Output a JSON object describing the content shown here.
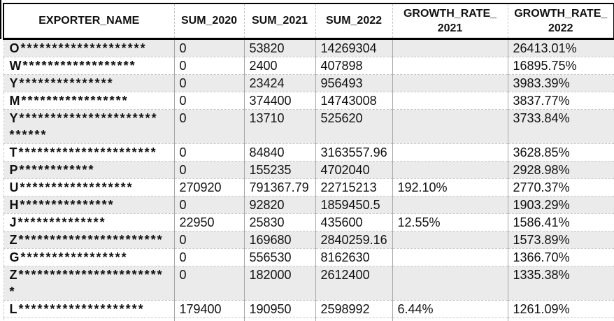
{
  "table": {
    "headers": [
      {
        "lines": [
          "EXPORTER_NAME"
        ]
      },
      {
        "lines": [
          "SUM_2020"
        ]
      },
      {
        "lines": [
          "SUM_2021"
        ]
      },
      {
        "lines": [
          "SUM_2022"
        ]
      },
      {
        "lines": [
          "GROWTH_RATE_",
          "2021"
        ]
      },
      {
        "lines": [
          "GROWTH_RATE_",
          "2022"
        ]
      }
    ],
    "rows": [
      {
        "name_lines": [
          "O********************"
        ],
        "sum_2020": "0",
        "sum_2021": "53820",
        "sum_2022": "14269304",
        "growth_rate_2021": "",
        "growth_rate_2022": "26413.01%"
      },
      {
        "name_lines": [
          "W******************"
        ],
        "sum_2020": "0",
        "sum_2021": "2400",
        "sum_2022": "407898",
        "growth_rate_2021": "",
        "growth_rate_2022": "16895.75%"
      },
      {
        "name_lines": [
          "Y***************"
        ],
        "sum_2020": "0",
        "sum_2021": "23424",
        "sum_2022": "956493",
        "growth_rate_2021": "",
        "growth_rate_2022": "3983.39%"
      },
      {
        "name_lines": [
          "M*****************"
        ],
        "sum_2020": "0",
        "sum_2021": "374400",
        "sum_2022": "14743008",
        "growth_rate_2021": "",
        "growth_rate_2022": "3837.77%"
      },
      {
        "name_lines": [
          "Y**********************",
          "******"
        ],
        "sum_2020": "0",
        "sum_2021": "13710",
        "sum_2022": "525620",
        "growth_rate_2021": "",
        "growth_rate_2022": "3733.84%"
      },
      {
        "name_lines": [
          "T**********************"
        ],
        "sum_2020": "0",
        "sum_2021": "84840",
        "sum_2022": "3163557.96",
        "growth_rate_2021": "",
        "growth_rate_2022": "3628.85%"
      },
      {
        "name_lines": [
          "P************"
        ],
        "sum_2020": "0",
        "sum_2021": "155235",
        "sum_2022": "4702040",
        "growth_rate_2021": "",
        "growth_rate_2022": "2928.98%"
      },
      {
        "name_lines": [
          "U******************"
        ],
        "sum_2020": "270920",
        "sum_2021": "791367.79",
        "sum_2022": "22715213",
        "growth_rate_2021": "192.10%",
        "growth_rate_2022": "2770.37%"
      },
      {
        "name_lines": [
          "H***************"
        ],
        "sum_2020": "0",
        "sum_2021": "92820",
        "sum_2022": "1859450.5",
        "growth_rate_2021": "",
        "growth_rate_2022": "1903.29%"
      },
      {
        "name_lines": [
          "J**************"
        ],
        "sum_2020": "22950",
        "sum_2021": "25830",
        "sum_2022": "435600",
        "growth_rate_2021": "12.55%",
        "growth_rate_2022": "1586.41%"
      },
      {
        "name_lines": [
          "Z***********************"
        ],
        "sum_2020": "0",
        "sum_2021": "169680",
        "sum_2022": "2840259.16",
        "growth_rate_2021": "",
        "growth_rate_2022": "1573.89%"
      },
      {
        "name_lines": [
          "G*****************"
        ],
        "sum_2020": "0",
        "sum_2021": "556530",
        "sum_2022": "8162630",
        "growth_rate_2021": "",
        "growth_rate_2022": "1366.70%"
      },
      {
        "name_lines": [
          "Z***********************",
          "*"
        ],
        "sum_2020": "0",
        "sum_2021": "182000",
        "sum_2022": "2612400",
        "growth_rate_2021": "",
        "growth_rate_2022": "1335.38%"
      },
      {
        "name_lines": [
          "L********************"
        ],
        "sum_2020": "179400",
        "sum_2021": "190950",
        "sum_2022": "2598992",
        "growth_rate_2021": "6.44%",
        "growth_rate_2022": "1261.09%"
      }
    ]
  },
  "colors": {
    "stripe": "#ebebeb",
    "header_border": "#000000",
    "grid_vertical": "#a6a6a6",
    "grid_dashed": "#c6c6c6",
    "text": "#111111"
  }
}
